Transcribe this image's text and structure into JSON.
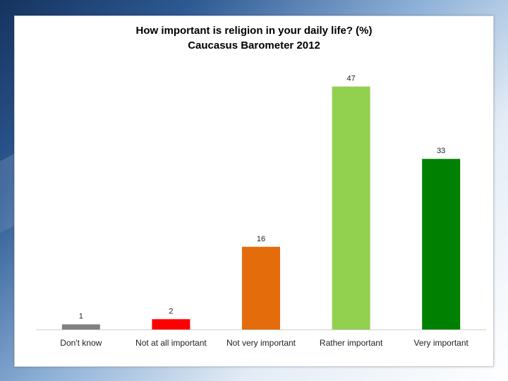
{
  "chart_data": {
    "type": "bar",
    "title": "How important is religion in your daily life? (%)",
    "subtitle": "Caucasus Barometer 2012",
    "categories": [
      "Don't know",
      "Not at all important",
      "Not very important",
      "Rather important",
      "Very important"
    ],
    "values": [
      1,
      2,
      16,
      47,
      33
    ],
    "colors": [
      "#808080",
      "#ff0000",
      "#e46c0a",
      "#92d050",
      "#008000"
    ],
    "ylim": [
      0,
      50
    ],
    "grid": false,
    "legend": "none",
    "data_labels": true
  }
}
